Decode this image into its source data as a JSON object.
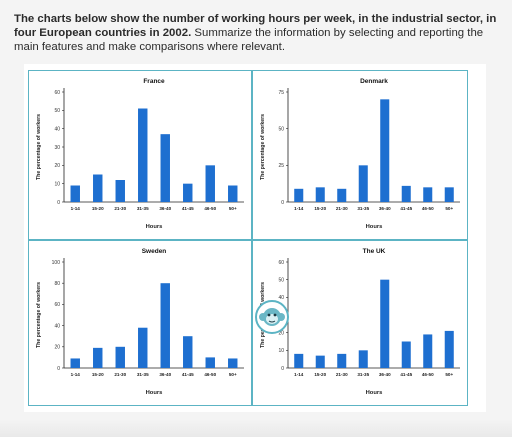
{
  "prompt": {
    "bold": "The charts below show the number of working hours per week, in the industrial sector, in four European countries in 2002.",
    "normal": " Summarize the information by selecting and reporting the main features and make comparisons where relevant."
  },
  "colors": {
    "bar": "#1e6fd0",
    "frame": "#5cb4c4",
    "axis": "#222222"
  },
  "icons": {
    "center_badge": "monkey-logo-icon"
  },
  "chart_data": [
    {
      "type": "bar",
      "title": "France",
      "categories": [
        "1-14",
        "15-20",
        "21-30",
        "31-35",
        "36-40",
        "41-45",
        "46-50",
        "50+"
      ],
      "values": [
        9,
        15,
        12,
        51,
        37,
        10,
        20,
        9
      ],
      "xlabel": "Hours",
      "ylabel": "The percentage of workers",
      "ylim": [
        0,
        60
      ],
      "yticks": [
        "0",
        "10",
        "20",
        "30",
        "40",
        "50",
        "60"
      ],
      "grid": false
    },
    {
      "type": "bar",
      "title": "Denmark",
      "categories": [
        "1-14",
        "15-20",
        "21-30",
        "31-35",
        "36-40",
        "41-45",
        "46-50",
        "50+"
      ],
      "values": [
        9,
        10,
        9,
        25,
        70,
        11,
        10,
        10
      ],
      "xlabel": "Hours",
      "ylabel": "The percentage of workers",
      "ylim": [
        0,
        75
      ],
      "yticks": [
        "0",
        "25",
        "50",
        "75"
      ],
      "grid": false
    },
    {
      "type": "bar",
      "title": "Sweden",
      "categories": [
        "1-14",
        "15-20",
        "21-30",
        "31-35",
        "36-40",
        "41-45",
        "46-50",
        "50+"
      ],
      "values": [
        9,
        19,
        20,
        38,
        80,
        30,
        10,
        9
      ],
      "xlabel": "Hours",
      "ylabel": "The percentage of workers",
      "ylim": [
        0,
        100
      ],
      "yticks": [
        "0",
        "20",
        "40",
        "60",
        "80",
        "100"
      ],
      "grid": false
    },
    {
      "type": "bar",
      "title": "The UK",
      "categories": [
        "1-14",
        "15-20",
        "21-30",
        "31-35",
        "36-40",
        "41-45",
        "46-50",
        "50+"
      ],
      "values": [
        8,
        7,
        8,
        10,
        50,
        15,
        19,
        21
      ],
      "xlabel": "Hours",
      "ylabel": "The percentage of workers",
      "ylim": [
        0,
        60
      ],
      "yticks": [
        "0",
        "10",
        "20",
        "30",
        "40",
        "50",
        "60"
      ],
      "grid": false
    }
  ]
}
